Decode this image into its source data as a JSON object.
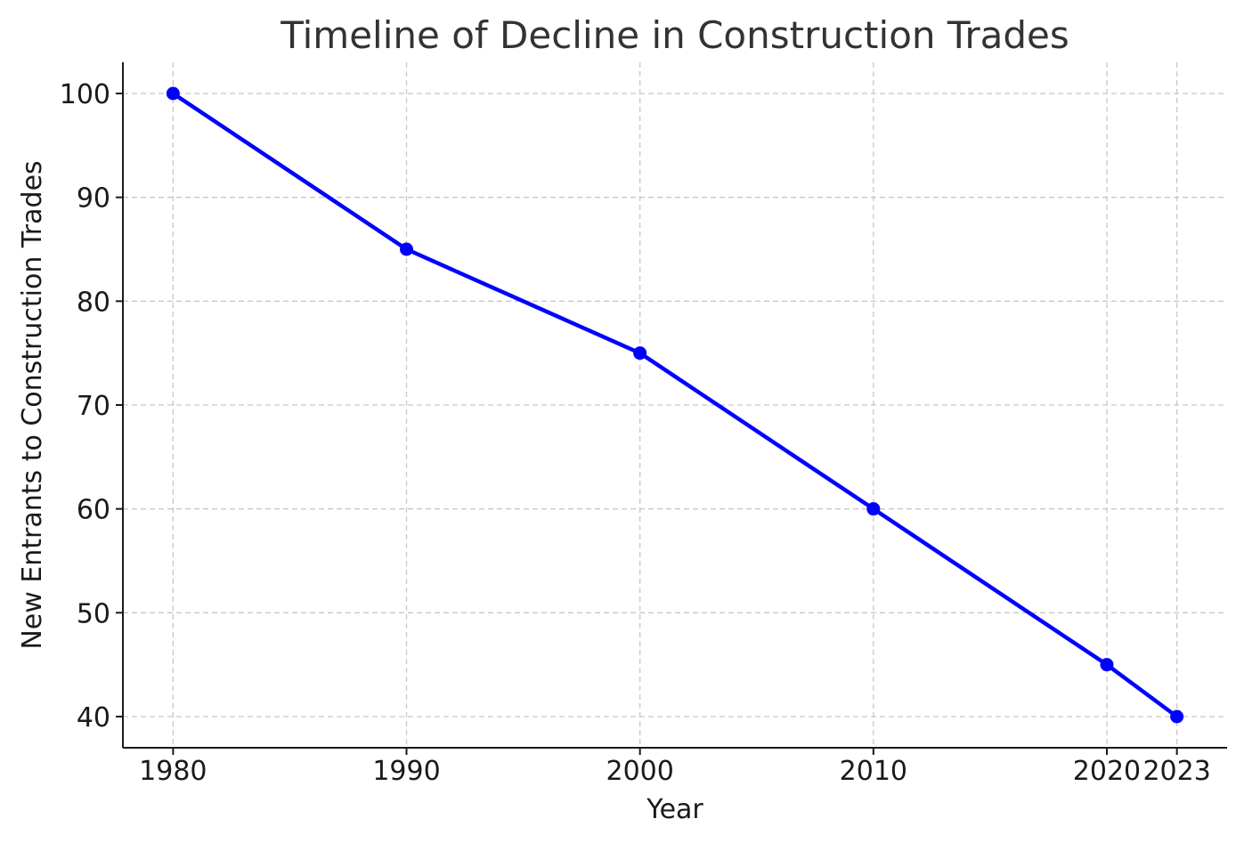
{
  "chart_data": {
    "type": "line",
    "title": "Timeline of Decline in Construction Trades",
    "xlabel": "Year",
    "ylabel": "New Entrants to Construction Trades",
    "x": [
      1980,
      1990,
      2000,
      2010,
      2020,
      2023
    ],
    "series": [
      {
        "values": [
          100,
          85,
          75,
          60,
          45,
          40
        ],
        "color": "#0000ff",
        "marker": "circle"
      }
    ],
    "xticks": [
      "1980",
      "1990",
      "2000",
      "2010",
      "2020",
      "2023"
    ],
    "yticks": [
      "40",
      "50",
      "60",
      "70",
      "80",
      "90",
      "100"
    ],
    "xlim": [
      1977.85,
      2025.15
    ],
    "ylim": [
      37,
      103
    ],
    "grid": true,
    "grid_style": "dashed",
    "legend": "none"
  }
}
